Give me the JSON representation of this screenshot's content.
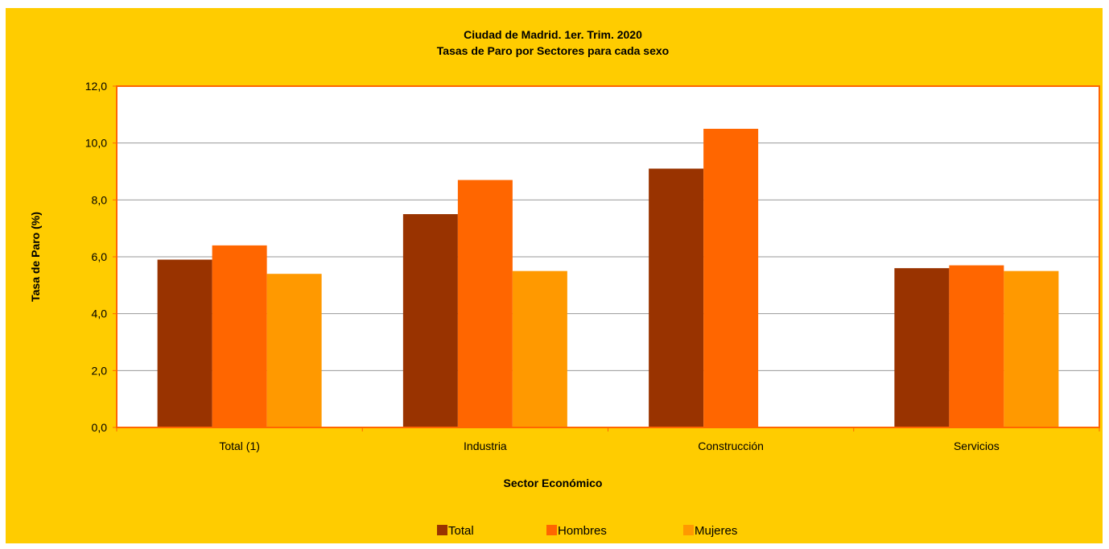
{
  "chart_data": {
    "type": "bar",
    "title": "Ciudad de Madrid. 1er. Trim. 2020",
    "subtitle": "Tasas de Paro por Sectores para cada sexo",
    "xlabel": "Sector Económico",
    "ylabel": "Tasa de Paro (%)",
    "categories": [
      "Total (1)",
      "Industria",
      "Construcción",
      "Servicios"
    ],
    "series": [
      {
        "name": "Total",
        "color": "#993300",
        "values": [
          5.9,
          7.5,
          9.1,
          5.6
        ]
      },
      {
        "name": "Hombres",
        "color": "#FF6600",
        "values": [
          6.4,
          8.7,
          10.5,
          5.7
        ]
      },
      {
        "name": "Mujeres",
        "color": "#FF9900",
        "values": [
          5.4,
          5.5,
          null,
          5.5
        ]
      }
    ],
    "ylim": [
      0,
      12
    ],
    "yticks": [
      "0,0",
      "2,0",
      "4,0",
      "6,0",
      "8,0",
      "10,0",
      "12,0"
    ],
    "grid": true,
    "legend_position": "bottom",
    "colors": {
      "background": "#FFCC00",
      "plot_area": "#FFFFFF",
      "plot_border": "#FF6600",
      "gridline": "#999999"
    }
  }
}
